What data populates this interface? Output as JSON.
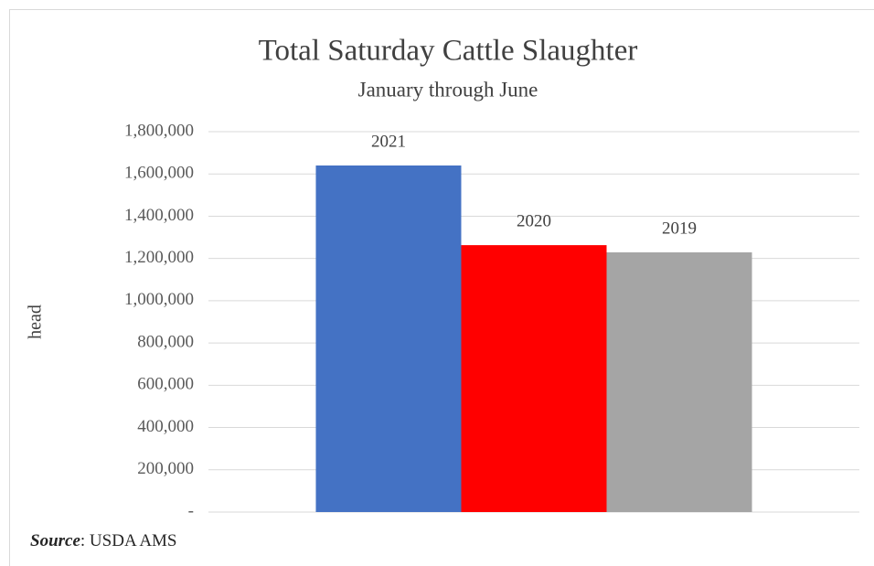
{
  "chart_data": {
    "type": "bar",
    "title": "Total Saturday Cattle Slaughter",
    "subtitle": "January through June",
    "y_label": "head",
    "categories": [
      "2021",
      "2020",
      "2019"
    ],
    "values": [
      1640000,
      1263000,
      1229000
    ],
    "colors": [
      "#4472c4",
      "#ff0000",
      "#a5a5a5"
    ],
    "ylim": [
      0,
      1800000
    ],
    "yticks": [
      {
        "value": 0,
        "label": "-"
      },
      {
        "value": 200000,
        "label": "200,000"
      },
      {
        "value": 400000,
        "label": "400,000"
      },
      {
        "value": 600000,
        "label": "600,000"
      },
      {
        "value": 800000,
        "label": "800,000"
      },
      {
        "value": 1000000,
        "label": "1,000,000"
      },
      {
        "value": 1200000,
        "label": "1,200,000"
      },
      {
        "value": 1400000,
        "label": "1,400,000"
      },
      {
        "value": 1600000,
        "label": "1,600,000"
      },
      {
        "value": 1800000,
        "label": "1,800,000"
      }
    ],
    "grid": true,
    "source": {
      "label": "Source",
      "text": ": USDA AMS"
    }
  }
}
